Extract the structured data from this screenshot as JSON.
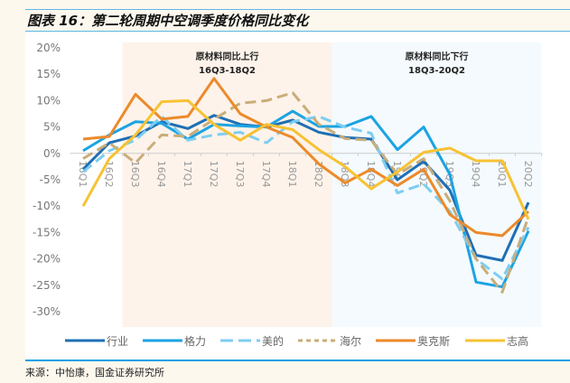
{
  "title": "图表 16：第二轮周期中空调季度价格同比变化",
  "source": "来源：中怡康，国金证券研究所",
  "chart_data": {
    "type": "line",
    "title": "图表 16：第二轮周期中空调季度价格同比变化",
    "xlabel": "",
    "ylabel": "",
    "ylim": [
      -30,
      20
    ],
    "yticks": [
      "20%",
      "15%",
      "10%",
      "5%",
      "0%",
      "-5%",
      "-10%",
      "-15%",
      "-20%",
      "-25%",
      "-30%"
    ],
    "grid": false,
    "legend_position": "bottom",
    "categories": [
      "16Q1",
      "16Q2",
      "16Q3",
      "16Q4",
      "17Q1",
      "17Q2",
      "17Q3",
      "17Q4",
      "18Q1",
      "18Q2",
      "18Q3",
      "18Q4",
      "19Q1",
      "19Q2",
      "19Q3",
      "19Q4",
      "20Q1",
      "20Q2"
    ],
    "annotations": [
      {
        "line1": "原材料同比上行",
        "line2": "16Q3-18Q2",
        "from": "16Q3",
        "to": "18Q2",
        "color": "#fdf3ea"
      },
      {
        "line1": "原材料同比下行",
        "line2": "18Q3-20Q2",
        "from": "18Q3",
        "to": "20Q2",
        "color": "#f4fafd"
      }
    ],
    "series": [
      {
        "name": "行业",
        "color": "#1f6fb4",
        "dash": false,
        "values": [
          -3,
          2,
          3.3,
          6,
          4.7,
          7.2,
          5.5,
          5,
          6.3,
          4,
          3,
          2.7,
          -5,
          -1.5,
          -7,
          -19.3,
          -20.3,
          -9.3
        ]
      },
      {
        "name": "格力",
        "color": "#1ba3e3",
        "dash": false,
        "values": [
          0.5,
          3.5,
          6,
          5.7,
          2.7,
          5.5,
          5.2,
          5,
          8,
          5.1,
          5.1,
          7,
          0.7,
          5,
          -4,
          -24.4,
          -25.3,
          -14.7
        ]
      },
      {
        "name": "美的",
        "color": "#7dcdf2",
        "dash": true,
        "values": [
          -3.5,
          0.5,
          2.5,
          7,
          2.5,
          3.5,
          4,
          2,
          6,
          7,
          5,
          3.8,
          -7.5,
          -5.8,
          -11,
          -20,
          -23.8,
          -14
        ]
      },
      {
        "name": "海尔",
        "color": "#c9ad7a",
        "dash": true,
        "values": [
          -1,
          2,
          -1.8,
          3.5,
          3.2,
          6.5,
          9.5,
          10,
          11.5,
          5.5,
          2.8,
          2.5,
          -4,
          -1,
          -9,
          -20,
          -26.3,
          -12
        ]
      },
      {
        "name": "奥克斯",
        "color": "#ec8a2a",
        "dash": false,
        "values": [
          2.7,
          3.2,
          11.2,
          6.5,
          7,
          14.2,
          7.5,
          5,
          3,
          -2,
          -5.6,
          -3,
          -6.1,
          -3,
          -11.6,
          -15,
          -15.6,
          -11
        ]
      },
      {
        "name": "志高",
        "color": "#f7c233",
        "dash": false,
        "values": [
          -10,
          -1,
          3.5,
          9.8,
          10,
          5.5,
          2.5,
          5.5,
          4.5,
          0.7,
          -2.5,
          -6.7,
          -3.5,
          0.2,
          1,
          -1.4,
          -1.4,
          -12.5
        ]
      }
    ]
  }
}
